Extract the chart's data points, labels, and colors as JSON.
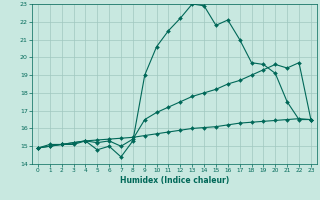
{
  "xlabel": "Humidex (Indice chaleur)",
  "xlim": [
    -0.5,
    23.5
  ],
  "ylim": [
    14,
    23
  ],
  "yticks": [
    14,
    15,
    16,
    17,
    18,
    19,
    20,
    21,
    22,
    23
  ],
  "xticks": [
    0,
    1,
    2,
    3,
    4,
    5,
    6,
    7,
    8,
    9,
    10,
    11,
    12,
    13,
    14,
    15,
    16,
    17,
    18,
    19,
    20,
    21,
    22,
    23
  ],
  "bg_color": "#c8e8e0",
  "grid_color": "#a0c8c0",
  "line_color": "#006858",
  "line1_y": [
    14.9,
    15.1,
    15.1,
    15.1,
    15.3,
    14.8,
    15.0,
    14.4,
    15.3,
    19.0,
    20.6,
    21.5,
    22.2,
    23.0,
    22.9,
    21.8,
    22.1,
    21.0,
    19.7,
    19.6,
    19.1,
    17.5,
    16.5,
    16.5
  ],
  "line2_y": [
    14.9,
    15.0,
    15.1,
    15.2,
    15.3,
    15.2,
    15.3,
    15.0,
    15.4,
    16.5,
    16.9,
    17.2,
    17.5,
    17.8,
    18.0,
    18.2,
    18.5,
    18.7,
    19.0,
    19.3,
    19.6,
    19.4,
    19.7,
    16.5
  ],
  "line3_y": [
    14.9,
    15.0,
    15.1,
    15.2,
    15.3,
    15.35,
    15.4,
    15.45,
    15.5,
    15.6,
    15.7,
    15.8,
    15.9,
    16.0,
    16.05,
    16.1,
    16.2,
    16.3,
    16.35,
    16.4,
    16.45,
    16.5,
    16.55,
    16.5
  ]
}
